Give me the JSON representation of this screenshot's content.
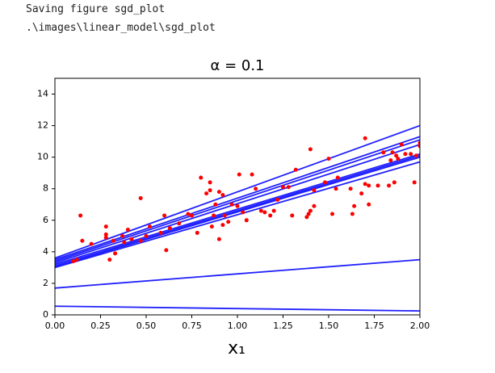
{
  "output_lines": [
    "Saving figure sgd_plot",
    ".\\images\\linear_model\\sgd_plot"
  ],
  "chart_data": {
    "type": "line",
    "title": "α = 0.1",
    "xlabel": "x₁",
    "x": [
      0,
      2
    ],
    "series": [
      {
        "color": "#2020ff",
        "values": [
          0.55,
          0.25
        ]
      },
      {
        "color": "#2020ff",
        "values": [
          1.7,
          3.5
        ]
      },
      {
        "color": "#2020ff",
        "values": [
          3.6,
          12.0
        ]
      },
      {
        "color": "#2020ff",
        "values": [
          3.5,
          11.3
        ]
      },
      {
        "color": "#2020ff",
        "values": [
          3.4,
          11.1
        ]
      },
      {
        "color": "#2020ff",
        "values": [
          3.3,
          10.8
        ]
      },
      {
        "color": "#2020ff",
        "values": [
          3.2,
          10.2
        ]
      },
      {
        "color": "#2020ff",
        "values": [
          3.1,
          10.1
        ]
      },
      {
        "color": "#2020ff",
        "values": [
          3.05,
          10.0
        ]
      },
      {
        "color": "#2020ff",
        "values": [
          3.0,
          9.7
        ]
      }
    ],
    "points": {
      "type": "scatter",
      "color": "#ff0000",
      "x": [
        0.1,
        0.12,
        0.14,
        0.15,
        0.2,
        0.28,
        0.28,
        0.28,
        0.3,
        0.32,
        0.33,
        0.37,
        0.38,
        0.4,
        0.42,
        0.47,
        0.47,
        0.5,
        0.52,
        0.58,
        0.6,
        0.61,
        0.63,
        0.68,
        0.73,
        0.75,
        0.78,
        0.8,
        0.83,
        0.85,
        0.85,
        0.86,
        0.87,
        0.88,
        0.9,
        0.9,
        0.92,
        0.92,
        0.93,
        0.95,
        0.97,
        1.0,
        1.01,
        1.03,
        1.05,
        1.08,
        1.1,
        1.13,
        1.15,
        1.18,
        1.2,
        1.22,
        1.25,
        1.28,
        1.3,
        1.32,
        1.38,
        1.39,
        1.4,
        1.4,
        1.42,
        1.42,
        1.48,
        1.5,
        1.52,
        1.54,
        1.55,
        1.62,
        1.63,
        1.64,
        1.68,
        1.7,
        1.7,
        1.72,
        1.72,
        1.77,
        1.8,
        1.83,
        1.84,
        1.85,
        1.86,
        1.87,
        1.88,
        1.9,
        1.92,
        1.95,
        1.97,
        1.98,
        2.0,
        2.0
      ],
      "y": [
        3.4,
        3.5,
        6.3,
        4.7,
        4.5,
        5.6,
        5.1,
        4.9,
        3.5,
        4.7,
        3.9,
        5.0,
        4.6,
        5.4,
        4.8,
        7.4,
        4.7,
        5.0,
        5.6,
        5.2,
        6.3,
        4.1,
        5.5,
        5.8,
        6.4,
        6.3,
        5.2,
        8.7,
        7.7,
        8.4,
        7.9,
        5.6,
        6.3,
        7.0,
        7.8,
        4.8,
        5.7,
        7.6,
        6.3,
        5.9,
        7.0,
        6.9,
        8.9,
        6.5,
        6.0,
        8.9,
        8.0,
        6.6,
        6.5,
        6.3,
        6.6,
        7.3,
        8.1,
        8.1,
        6.3,
        9.2,
        6.2,
        6.4,
        6.6,
        10.5,
        7.9,
        6.9,
        8.4,
        9.9,
        6.4,
        8.0,
        8.7,
        8.0,
        6.4,
        6.9,
        7.7,
        8.3,
        11.2,
        8.2,
        7.0,
        8.2,
        10.3,
        8.2,
        9.8,
        10.3,
        8.4,
        10.1,
        9.9,
        10.8,
        10.2,
        10.2,
        8.4,
        10.1,
        10.9,
        10.7
      ]
    },
    "xlim": [
      0,
      2
    ],
    "ylim": [
      0,
      15
    ],
    "xticks": [
      {
        "value": 0,
        "label": "0.00"
      },
      {
        "value": 0.25,
        "label": "0.25"
      },
      {
        "value": 0.5,
        "label": "0.50"
      },
      {
        "value": 0.75,
        "label": "0.75"
      },
      {
        "value": 1,
        "label": "1.00"
      },
      {
        "value": 1.25,
        "label": "1.25"
      },
      {
        "value": 1.5,
        "label": "1.50"
      },
      {
        "value": 1.75,
        "label": "1.75"
      },
      {
        "value": 2,
        "label": "2.00"
      }
    ],
    "yticks": [
      0,
      2,
      4,
      6,
      8,
      10,
      12,
      14
    ]
  }
}
